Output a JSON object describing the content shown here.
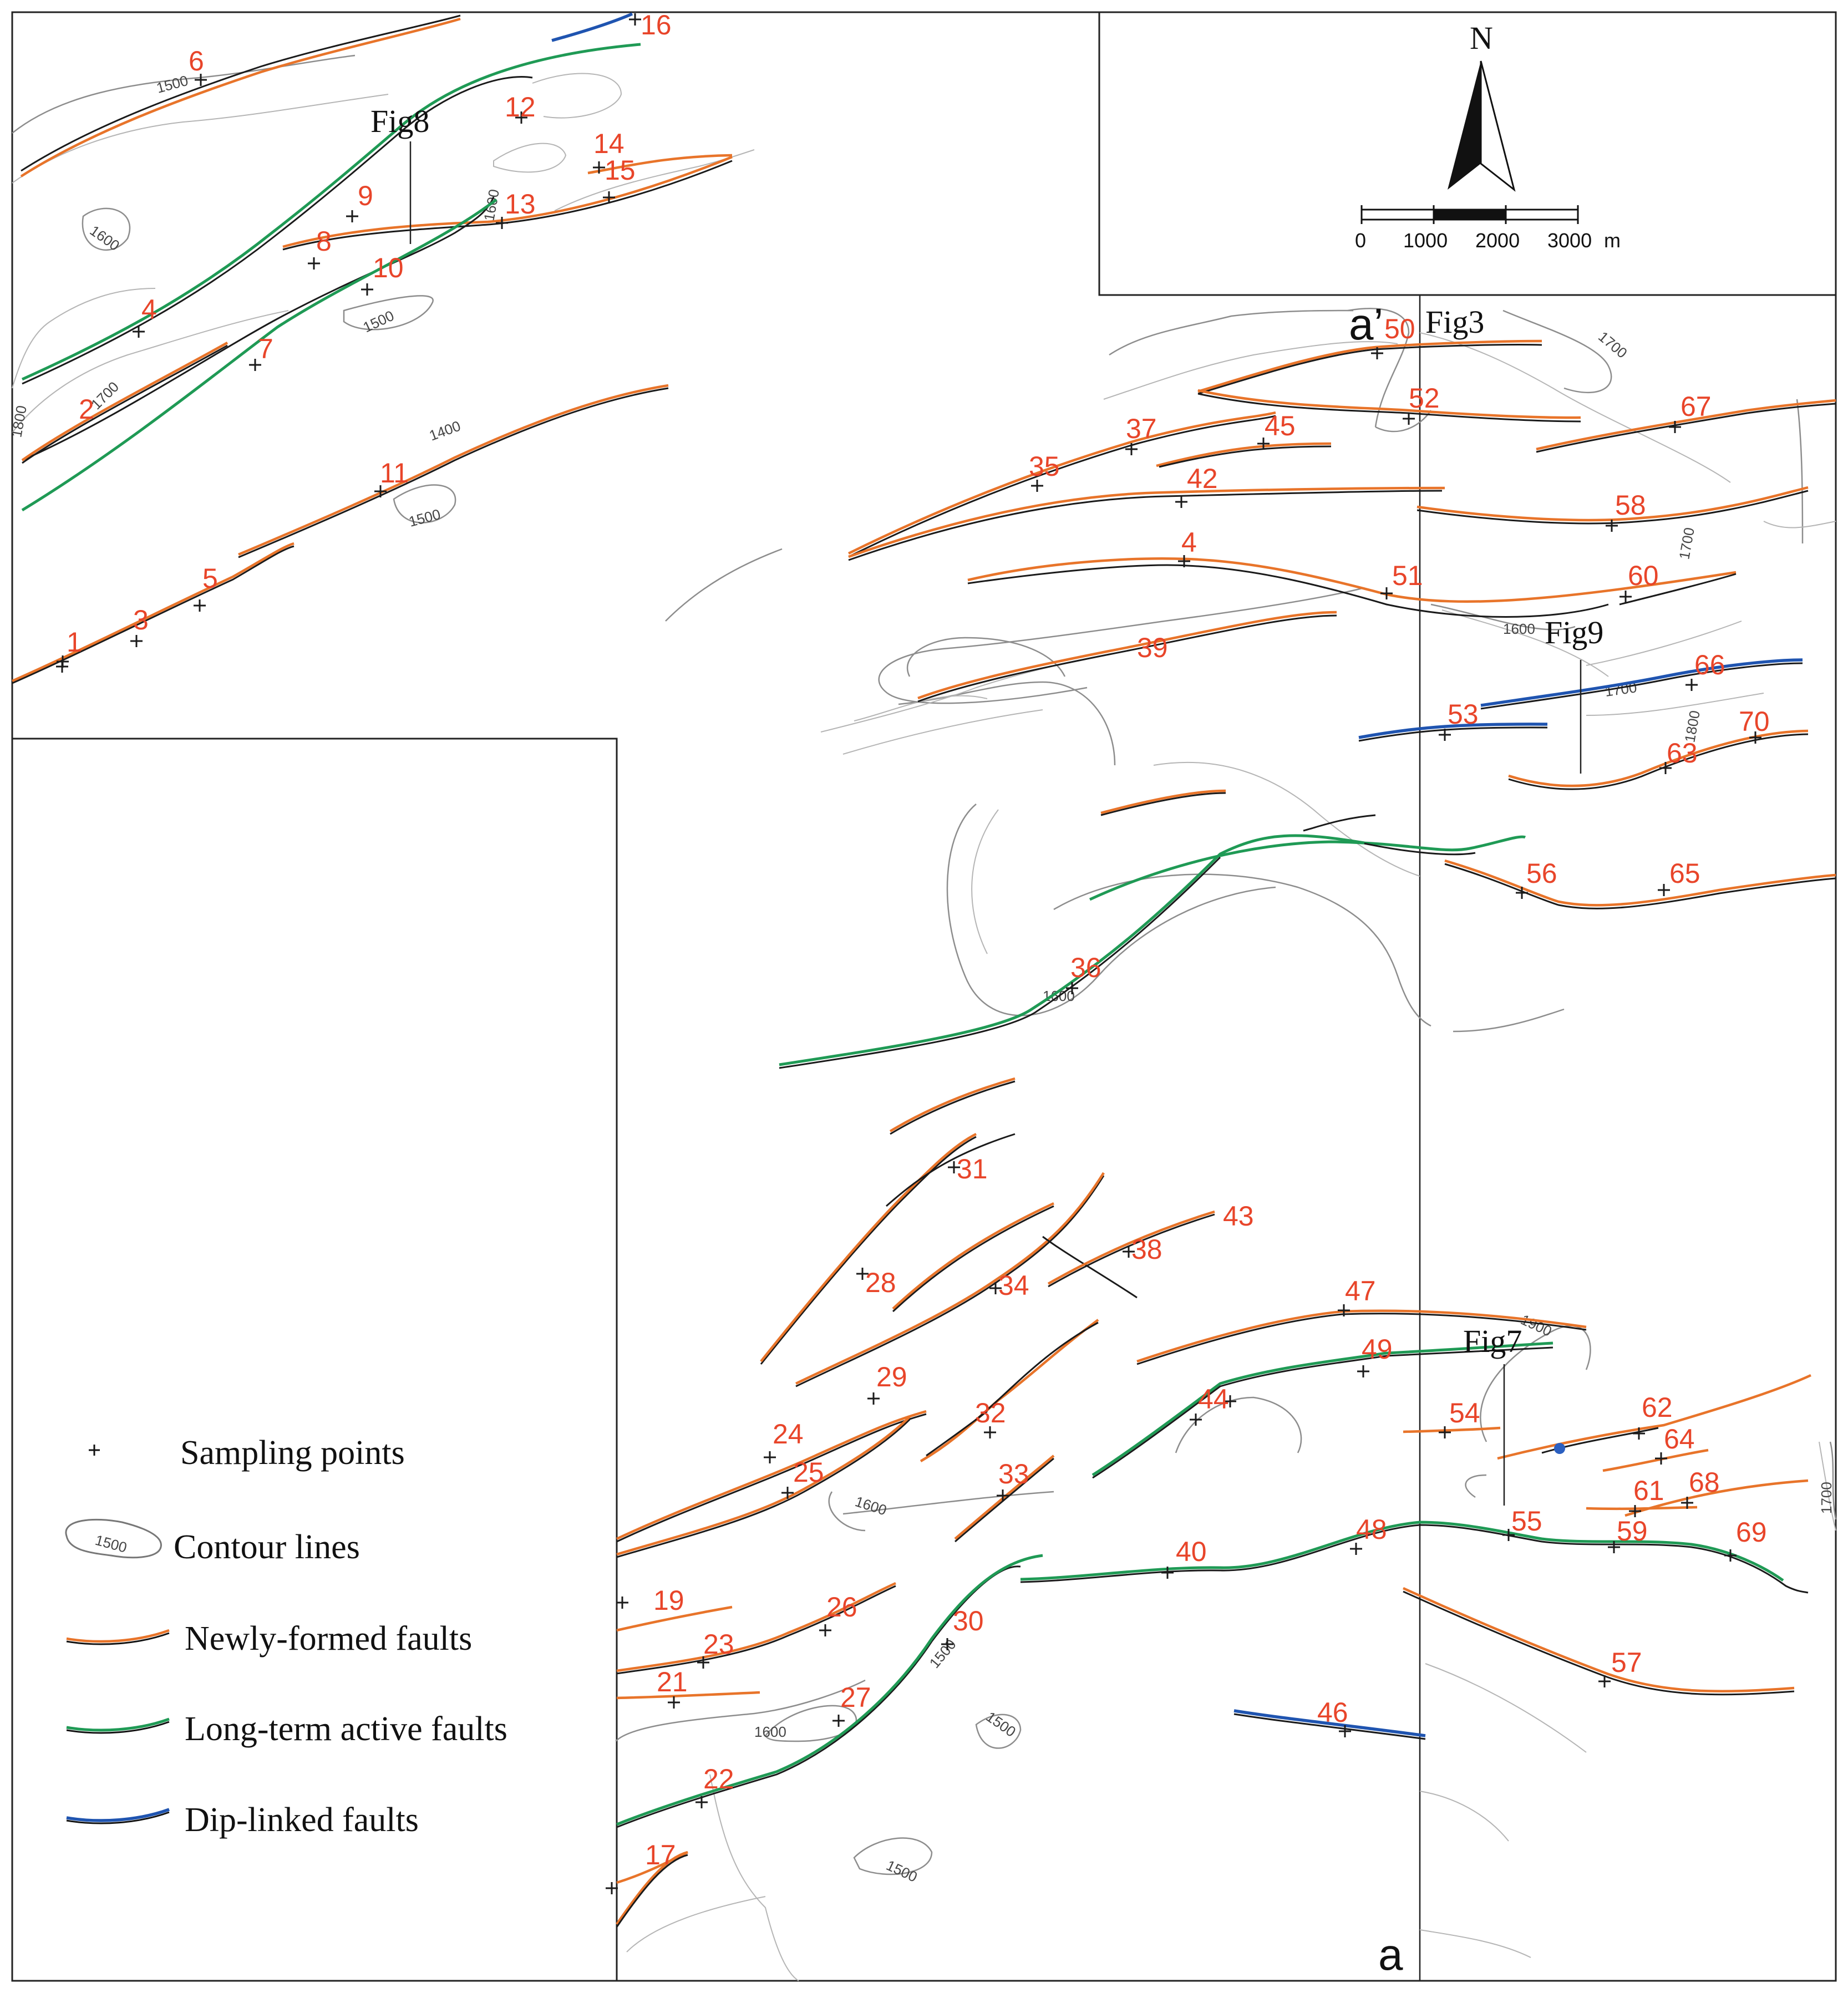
{
  "figure_refs": {
    "fig8": "Fig8",
    "fig3": "Fig3",
    "fig9": "Fig9",
    "fig7": "Fig7"
  },
  "section_labels": {
    "start": "a",
    "end": "a’"
  },
  "north_arrow": {
    "label": "N"
  },
  "scale_bar": {
    "ticks": [
      "0",
      "1000",
      "2000",
      "3000"
    ],
    "unit": "m"
  },
  "contour_values": {
    "c1500_a": "1500",
    "c1600_a": "1600",
    "c1700_a": "1700",
    "c1800_a": "1800",
    "c1500_b": "1500",
    "c1600_b": "1600",
    "c1400_a": "1400",
    "c1500_c": "1500",
    "c1700_b": "1700",
    "c1700_c": "1700",
    "c1600_c": "1600",
    "c1700_d": "1700",
    "c1800_b": "1800",
    "c1600_d": "1600",
    "c1900": "1900",
    "c1600_e": "1600",
    "c1600_f": "1600",
    "c1500_d": "1500",
    "c1500_e": "1500",
    "c1500_f": "1500",
    "c1700_e": "1700"
  },
  "sampling_points": [
    "1",
    "2",
    "3",
    "4",
    "5",
    "6",
    "7",
    "8",
    "9",
    "10",
    "11",
    "12",
    "13",
    "14",
    "15",
    "16",
    "17",
    "19",
    "21",
    "22",
    "23",
    "24",
    "25",
    "26",
    "27",
    "28",
    "29",
    "30",
    "31",
    "32",
    "33",
    "34",
    "35",
    "36",
    "37",
    "38",
    "39",
    "4",
    "40",
    "42",
    "43",
    "44",
    "45",
    "46",
    "47",
    "48",
    "49",
    "50",
    "51",
    "52",
    "53",
    "54",
    "55",
    "56",
    "57",
    "58",
    "59",
    "60",
    "61",
    "62",
    "63",
    "64",
    "65",
    "66",
    "67",
    "68",
    "69",
    "70"
  ],
  "legend": {
    "sampling_points": "Sampling points",
    "contour_lines": "Contour lines",
    "contour_example": "1500",
    "newly_formed": "Newly-formed faults",
    "long_term": "Long-term active faults",
    "dip_linked": "Dip-linked faults"
  },
  "colors": {
    "newly_formed_fault": "#e8742a",
    "long_term_fault": "#1f9a55",
    "dip_linked_fault": "#1f54b0",
    "label_red": "#e8452a",
    "contour": "#8d8d8d"
  },
  "icons": [
    "north-arrow-icon",
    "scale-bar",
    "cross-marker-icon"
  ]
}
